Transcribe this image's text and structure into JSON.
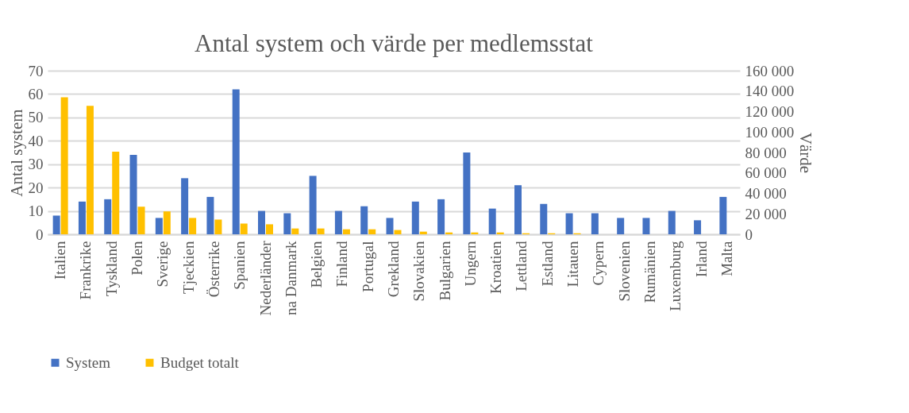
{
  "chart_data": {
    "type": "bar",
    "title": "Antal system och värde per medlemsstat",
    "ylabel": "Antal system",
    "y2label": "Värde",
    "categories": [
      "Italien",
      "Frankrike",
      "Tyskland",
      "Polen",
      "Sverige",
      "Tjeckien",
      "Österrike",
      "Spanien",
      "Nederländer",
      "na Danmark",
      "Belgien",
      "Finland",
      "Portugal",
      "Grekland",
      "Slovakien",
      "Bulgarien",
      "Ungern",
      "Kroatien",
      "Lettland",
      "Estland",
      "Litauen",
      "Cypern",
      "Slovenien",
      "Rumänien",
      "Luxemburg",
      "Irland",
      "Malta"
    ],
    "series": [
      {
        "name": "System",
        "color": "#4472c4",
        "values": [
          8,
          14,
          15,
          34,
          7,
          24,
          16,
          62,
          10,
          9,
          25,
          10,
          12,
          7,
          14,
          15,
          35,
          11,
          21,
          13,
          9,
          9,
          7,
          7,
          10,
          6,
          16
        ]
      },
      {
        "name": "Budget totalt",
        "color": "#ffc000",
        "axis": "y2",
        "values": [
          134000,
          125700,
          80700,
          27000,
          22400,
          16000,
          14400,
          10500,
          9800,
          5700,
          5700,
          4900,
          4900,
          4200,
          2600,
          1800,
          1800,
          1800,
          1000,
          1000,
          1000,
          null,
          null,
          null,
          null,
          null,
          null
        ]
      }
    ],
    "ylim": [
      0,
      70
    ],
    "yticks": [
      0,
      10,
      20,
      30,
      40,
      50,
      60,
      70
    ],
    "y2lim": [
      0,
      160000
    ],
    "y2ticks": [
      0,
      {
        "value": 20000,
        "label": "20 000"
      },
      {
        "value": 40000,
        "label": "40 000"
      },
      {
        "value": 60000,
        "label": "60 000"
      },
      {
        "value": 80000,
        "label": "80 000"
      },
      {
        "value": 100000,
        "label": "100 000"
      },
      {
        "value": 120000,
        "label": "120 000"
      },
      {
        "value": 140000,
        "label": "140 000"
      },
      {
        "value": 160000,
        "label": "160 000"
      }
    ],
    "grid": "y",
    "legend": "bottom"
  }
}
